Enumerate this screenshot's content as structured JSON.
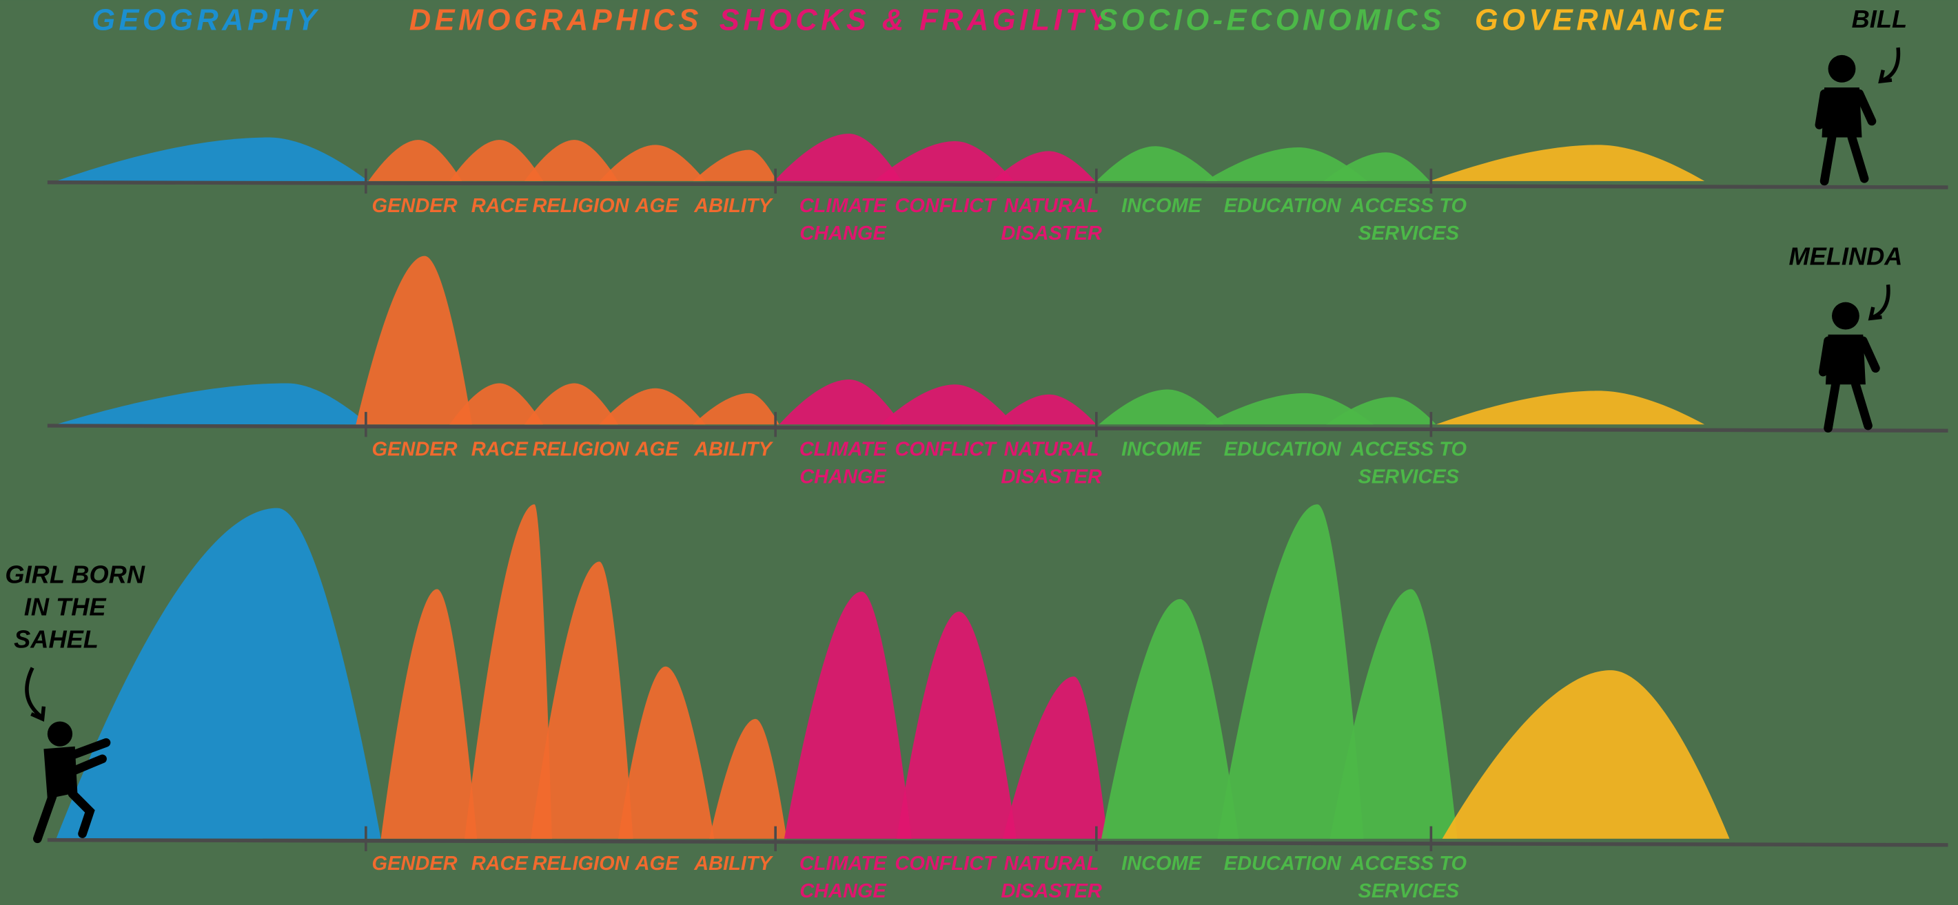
{
  "headers": [
    "GEOGRAPHY",
    "DEMOGRAPHICS",
    "SHOCKS & FRAGILITY",
    "SOCIO-ECONOMICS",
    "GOVERNANCE"
  ],
  "rows": [
    {
      "person": [
        "BILL"
      ],
      "labels": [
        [
          "GENDER"
        ],
        [
          "RACE"
        ],
        [
          "RELIGION"
        ],
        [
          "AGE"
        ],
        [
          "ABILITY"
        ],
        [
          "CLIMATE",
          "CHANGE"
        ],
        [
          "CONFLICT"
        ],
        [
          "NATURAL",
          "DISASTER"
        ],
        [
          "INCOME"
        ],
        [
          "EDUCATION"
        ],
        [
          "ACCESS TO",
          "SERVICES"
        ]
      ]
    },
    {
      "person": [
        "MELINDA"
      ],
      "labels": [
        [
          "GENDER"
        ],
        [
          "RACE"
        ],
        [
          "RELIGION"
        ],
        [
          "AGE"
        ],
        [
          "ABILITY"
        ],
        [
          "CLIMATE",
          "CHANGE"
        ],
        [
          "CONFLICT"
        ],
        [
          "NATURAL",
          "DISASTER"
        ],
        [
          "INCOME"
        ],
        [
          "EDUCATION"
        ],
        [
          "ACCESS TO",
          "SERVICES"
        ]
      ]
    },
    {
      "person": [
        "GIRL BORN",
        "IN THE",
        "SAHEL"
      ],
      "labels": [
        [
          "GENDER"
        ],
        [
          "RACE"
        ],
        [
          "RELIGION"
        ],
        [
          "AGE"
        ],
        [
          "ABILITY"
        ],
        [
          "CLIMATE",
          "CHANGE"
        ],
        [
          "CONFLICT"
        ],
        [
          "NATURAL",
          "DISASTER"
        ],
        [
          "INCOME"
        ],
        [
          "EDUCATION"
        ],
        [
          "ACCESS TO",
          "SERVICES"
        ]
      ]
    }
  ]
}
